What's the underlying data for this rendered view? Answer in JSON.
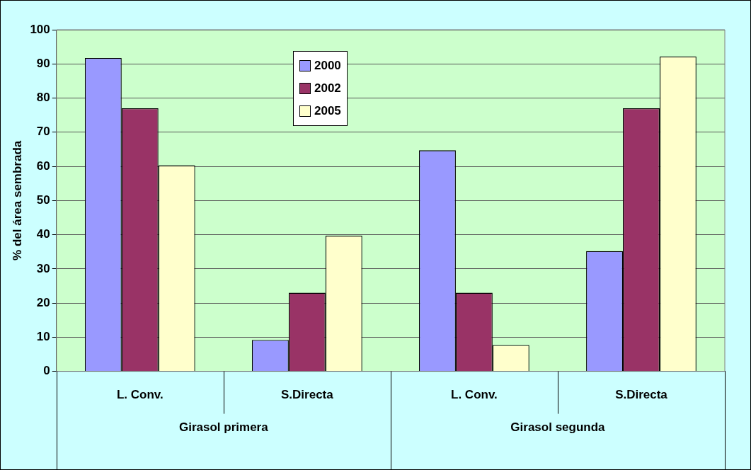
{
  "chart_data": {
    "type": "bar",
    "ylabel": "% del área sembrada",
    "categories": [
      "L. Conv.",
      "S.Directa",
      "L. Conv.",
      "S.Directa"
    ],
    "series": [
      {
        "name": "2000",
        "color": "#9999ff",
        "values": [
          91.7,
          9.2,
          64.7,
          35.2
        ]
      },
      {
        "name": "2002",
        "color": "#993366",
        "values": [
          77.0,
          23.0,
          23.0,
          77.0
        ]
      },
      {
        "name": "2005",
        "color": "#ffffcc",
        "values": [
          60.3,
          39.7,
          7.7,
          92.2
        ]
      }
    ],
    "ylim": [
      0,
      100
    ],
    "yticks": [
      0,
      10,
      20,
      30,
      40,
      50,
      60,
      70,
      80,
      90,
      100
    ],
    "grid": "y",
    "legend": "top",
    "annotations": [
      "Girasol primera",
      "Girasol segunda"
    ]
  }
}
